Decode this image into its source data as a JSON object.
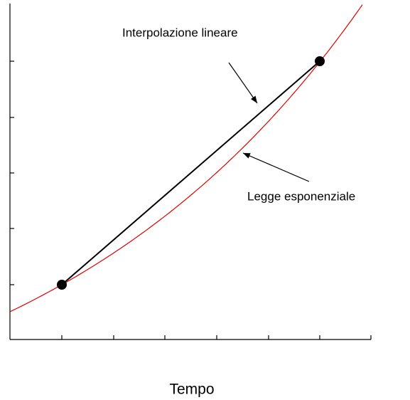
{
  "annotations": {
    "linear": "Interpolazione lineare",
    "exponential": "Legge esponenziale"
  },
  "axis": {
    "x_label": "Tempo"
  }
}
